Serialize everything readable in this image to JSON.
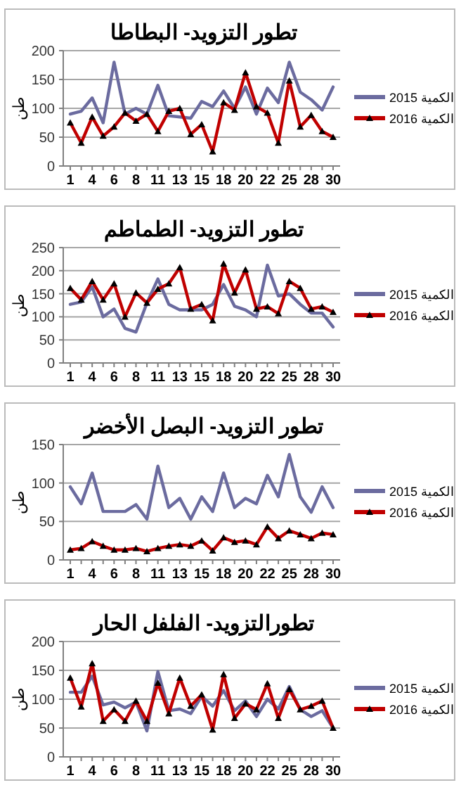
{
  "chart_data": [
    {
      "type": "line",
      "title": "تطور التزويد- البطاطا",
      "ylabel": "طن",
      "categories": [
        "1",
        null,
        "4",
        null,
        "6",
        null,
        "8",
        null,
        "11",
        null,
        "13",
        null,
        "15",
        null,
        "18",
        null,
        "20",
        null,
        "22",
        null,
        "25",
        null,
        "28",
        null,
        "30"
      ],
      "ylim": [
        0,
        200
      ],
      "yticks": [
        0,
        50,
        100,
        150,
        200
      ],
      "grid": "y",
      "legend": "right",
      "series": [
        {
          "name": "الكمية 2015",
          "color": "#6b6b9f",
          "marker": "none",
          "values": [
            90,
            95,
            118,
            75,
            180,
            90,
            100,
            90,
            140,
            87,
            85,
            83,
            112,
            103,
            130,
            100,
            137,
            90,
            135,
            110,
            180,
            128,
            115,
            97,
            137
          ]
        },
        {
          "name": "الكمية 2016",
          "color": "#c00000",
          "marker": "triangle",
          "values": [
            75,
            40,
            85,
            52,
            68,
            92,
            78,
            90,
            60,
            95,
            100,
            55,
            72,
            25,
            110,
            97,
            162,
            103,
            92,
            40,
            148,
            68,
            88,
            60,
            50
          ]
        }
      ]
    },
    {
      "type": "line",
      "title": "تطور التزويد- الطماطم",
      "ylabel": "طن",
      "categories": [
        "1",
        null,
        "4",
        null,
        "6",
        null,
        "8",
        null,
        "11",
        null,
        "13",
        null,
        "15",
        null,
        "18",
        null,
        "20",
        null,
        "22",
        null,
        "25",
        null,
        "28",
        null,
        "30"
      ],
      "ylim": [
        0,
        250
      ],
      "yticks": [
        0,
        50,
        100,
        150,
        200,
        250
      ],
      "grid": "y",
      "legend": "right",
      "series": [
        {
          "name": "الكمية 2015",
          "color": "#6b6b9f",
          "marker": "none",
          "values": [
            127,
            132,
            165,
            100,
            117,
            75,
            67,
            130,
            182,
            127,
            115,
            115,
            115,
            127,
            170,
            123,
            115,
            100,
            212,
            145,
            150,
            127,
            108,
            108,
            78
          ]
        },
        {
          "name": "الكمية 2016",
          "color": "#c00000",
          "marker": "triangle",
          "values": [
            162,
            137,
            177,
            137,
            172,
            100,
            152,
            130,
            160,
            172,
            207,
            117,
            127,
            92,
            215,
            152,
            202,
            117,
            122,
            107,
            177,
            162,
            117,
            122,
            110
          ]
        }
      ]
    },
    {
      "type": "line",
      "title": "تطور التزويد- البصل الأخضر",
      "ylabel": "طن",
      "categories": [
        "1",
        null,
        "4",
        null,
        "6",
        null,
        "8",
        null,
        "11",
        null,
        "13",
        null,
        "15",
        null,
        "18",
        null,
        "20",
        null,
        "22",
        null,
        "25",
        null,
        "28",
        null,
        "30"
      ],
      "ylim": [
        0,
        150
      ],
      "yticks": [
        0,
        50,
        100,
        150
      ],
      "grid": "y",
      "legend": "right",
      "series": [
        {
          "name": "الكمية 2015",
          "color": "#6b6b9f",
          "marker": "none",
          "values": [
            95,
            73,
            113,
            63,
            63,
            63,
            72,
            53,
            122,
            68,
            80,
            53,
            82,
            63,
            113,
            68,
            80,
            73,
            110,
            82,
            137,
            82,
            62,
            95,
            68
          ]
        },
        {
          "name": "الكمية 2016",
          "color": "#c00000",
          "marker": "triangle",
          "values": [
            13,
            15,
            24,
            18,
            13,
            13,
            15,
            11,
            15,
            18,
            20,
            18,
            25,
            12,
            29,
            23,
            25,
            20,
            43,
            28,
            38,
            33,
            28,
            35,
            33
          ]
        }
      ]
    },
    {
      "type": "line",
      "title": "تطورالتزويد- الفلفل الحار",
      "ylabel": "طن",
      "categories": [
        "1",
        null,
        "4",
        null,
        "6",
        null,
        "8",
        null,
        "11",
        null,
        "13",
        null,
        "15",
        null,
        "18",
        null,
        "20",
        null,
        "22",
        null,
        "25",
        null,
        "28",
        null,
        "30"
      ],
      "ylim": [
        0,
        200
      ],
      "yticks": [
        0,
        50,
        100,
        150,
        200
      ],
      "grid": "y",
      "legend": "right",
      "series": [
        {
          "name": "الكمية 2015",
          "color": "#6b6b9f",
          "marker": "none",
          "values": [
            112,
            112,
            140,
            90,
            95,
            85,
            95,
            45,
            148,
            80,
            83,
            75,
            105,
            88,
            115,
            80,
            97,
            70,
            100,
            83,
            122,
            82,
            70,
            80,
            50
          ]
        },
        {
          "name": "الكمية 2016",
          "color": "#c00000",
          "marker": "triangle",
          "values": [
            137,
            87,
            162,
            62,
            82,
            62,
            97,
            62,
            128,
            75,
            137,
            88,
            108,
            47,
            143,
            67,
            92,
            82,
            127,
            67,
            117,
            82,
            88,
            97,
            50
          ]
        }
      ]
    }
  ]
}
